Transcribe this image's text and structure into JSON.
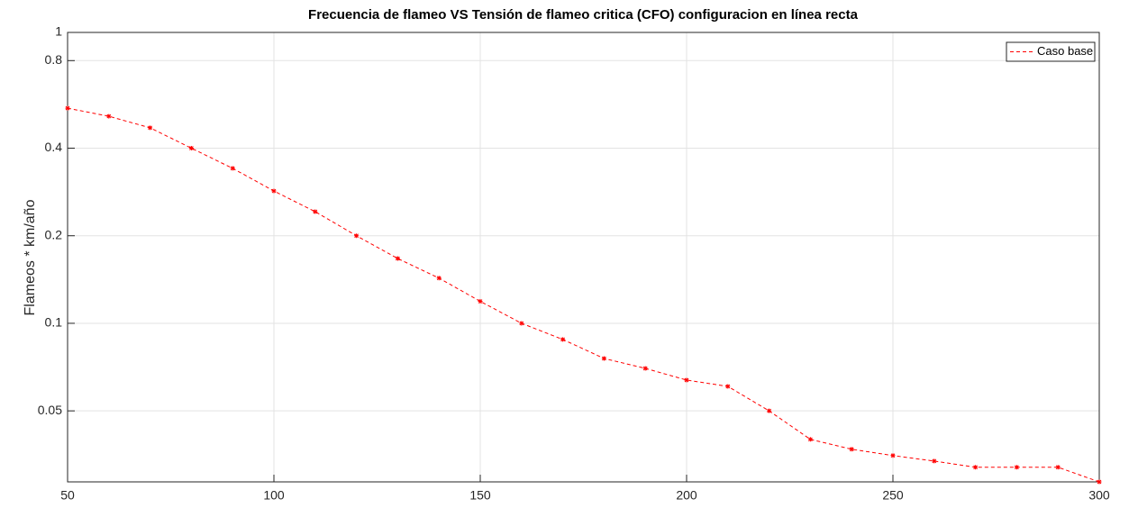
{
  "chart_data": {
    "type": "line",
    "title": "Frecuencia de flameo VS Tensión de flameo critica (CFO) configuracion en línea recta",
    "y_label": "Flameos * km/año",
    "x": [
      50,
      60,
      70,
      80,
      90,
      100,
      110,
      120,
      130,
      140,
      150,
      160,
      170,
      180,
      190,
      200,
      210,
      220,
      230,
      240,
      250,
      260,
      270,
      280,
      290,
      300
    ],
    "series": [
      {
        "name": "Caso base",
        "color": "#ff0000",
        "values": [
          0.549,
          0.515,
          0.47,
          0.4,
          0.341,
          0.285,
          0.242,
          0.2,
          0.167,
          0.143,
          0.119,
          0.1,
          0.088,
          0.0757,
          0.07,
          0.0638,
          0.0607,
          0.05,
          0.0399,
          0.0369,
          0.0351,
          0.0336,
          0.032,
          0.032,
          0.032,
          0.0285
        ]
      }
    ],
    "xlim": [
      50,
      300
    ],
    "xticks": [
      50,
      100,
      150,
      200,
      250,
      300
    ],
    "ylim": [
      0.0285,
      1
    ],
    "yticks": [
      0.05,
      0.1,
      0.2,
      0.4,
      0.8,
      1
    ],
    "y_scale": "log",
    "grid": true,
    "legend": "northeast"
  }
}
